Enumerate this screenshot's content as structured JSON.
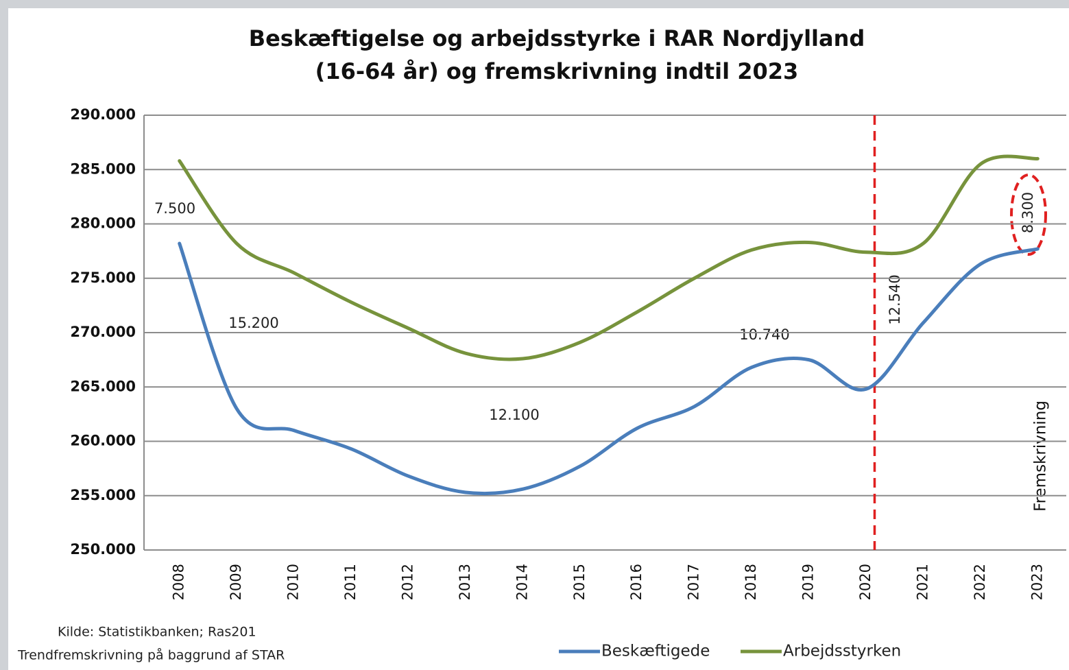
{
  "chart_data": {
    "type": "line",
    "title": [
      "Beskæftigelse og arbejdsstyrke i RAR Nordjylland",
      "(16-64 år) og fremskrivning indtil 2023"
    ],
    "categories": [
      "2008",
      "2009",
      "2010",
      "2011",
      "2012",
      "2013",
      "2014",
      "2015",
      "2016",
      "2017",
      "2018",
      "2019",
      "2020",
      "2021",
      "2022",
      "2023"
    ],
    "series": [
      {
        "name": "Beskæftigede",
        "color": "#4a7ebb",
        "values": [
          278200,
          263000,
          261000,
          259300,
          256800,
          255300,
          255600,
          257700,
          261200,
          263200,
          266800,
          267500,
          264800,
          270900,
          276300,
          277700
        ]
      },
      {
        "name": "Arbejdsstyrken",
        "color": "#77933c",
        "values": [
          285800,
          278200,
          275500,
          272800,
          270400,
          268100,
          267600,
          269100,
          271900,
          275000,
          277600,
          278300,
          277400,
          278200,
          285500,
          286000
        ]
      }
    ],
    "ylim": [
      250000,
      290000
    ],
    "yticks": [
      {
        "value": 250000,
        "label": "250.000"
      },
      {
        "value": 255000,
        "label": "255.000"
      },
      {
        "value": 260000,
        "label": "260.000"
      },
      {
        "value": 265000,
        "label": "265.000"
      },
      {
        "value": 270000,
        "label": "270.000"
      },
      {
        "value": 275000,
        "label": "275.000"
      },
      {
        "value": 280000,
        "label": "280.000"
      },
      {
        "value": 285000,
        "label": "285.000"
      },
      {
        "value": 290000,
        "label": "290.000"
      }
    ],
    "grid": true,
    "annotations": [
      "7.500",
      "15.200",
      "12.100",
      "10.740",
      "12.540",
      "8.300",
      "Fremskrivning"
    ],
    "source": [
      "Kilde: Statistikbanken; Ras201",
      "Trendfremskrivning på baggrund af STAR"
    ],
    "legend": "bottom"
  }
}
